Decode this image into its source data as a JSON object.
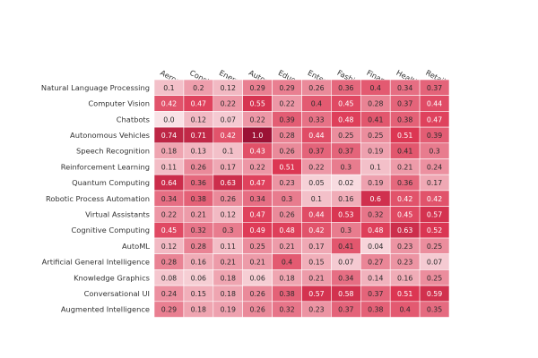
{
  "chart_data": {
    "type": "heatmap",
    "title": "",
    "xlabel": "",
    "ylabel": "",
    "columns": [
      "Aerospace",
      "Construction",
      "Energy",
      "Automotive",
      "Education",
      "Entertainment",
      "Fashion",
      "Finance",
      "Healthcare",
      "Retail"
    ],
    "rows": [
      "Natural Language Processing",
      "Computer Vision",
      "Chatbots",
      "Autonomous Vehicles",
      "Speech Recognition",
      "Reinforcement Learning",
      "Quantum Computing",
      "Robotic Process Automation",
      "Virtual Assistants",
      "Cognitive Computing",
      "AutoML",
      "Artificial General Intelligence",
      "Knowledge Graphics",
      "Conversational UI",
      "Augmented Intelligence"
    ],
    "values": [
      [
        0.1,
        0.2,
        0.12,
        0.29,
        0.29,
        0.26,
        0.36,
        0.4,
        0.34,
        0.37
      ],
      [
        0.42,
        0.47,
        0.22,
        0.55,
        0.22,
        0.4,
        0.45,
        0.28,
        0.37,
        0.44
      ],
      [
        0.0,
        0.12,
        0.07,
        0.22,
        0.39,
        0.33,
        0.48,
        0.41,
        0.38,
        0.47
      ],
      [
        0.74,
        0.71,
        0.42,
        1.0,
        0.28,
        0.44,
        0.25,
        0.25,
        0.51,
        0.39
      ],
      [
        0.18,
        0.13,
        0.1,
        0.43,
        0.26,
        0.37,
        0.37,
        0.19,
        0.41,
        0.3
      ],
      [
        0.11,
        0.26,
        0.17,
        0.22,
        0.51,
        0.22,
        0.3,
        0.1,
        0.21,
        0.24
      ],
      [
        0.64,
        0.36,
        0.63,
        0.47,
        0.23,
        0.05,
        0.02,
        0.19,
        0.36,
        0.17
      ],
      [
        0.34,
        0.38,
        0.26,
        0.34,
        0.3,
        0.1,
        0.16,
        0.6,
        0.42,
        0.42
      ],
      [
        0.22,
        0.21,
        0.12,
        0.47,
        0.26,
        0.44,
        0.53,
        0.32,
        0.45,
        0.57
      ],
      [
        0.45,
        0.32,
        0.3,
        0.49,
        0.48,
        0.42,
        0.3,
        0.48,
        0.63,
        0.52
      ],
      [
        0.12,
        0.28,
        0.11,
        0.25,
        0.21,
        0.17,
        0.41,
        0.04,
        0.23,
        0.25
      ],
      [
        0.28,
        0.16,
        0.21,
        0.21,
        0.4,
        0.15,
        0.07,
        0.27,
        0.23,
        0.07
      ],
      [
        0.08,
        0.06,
        0.18,
        0.06,
        0.18,
        0.21,
        0.34,
        0.14,
        0.16,
        0.25
      ],
      [
        0.24,
        0.15,
        0.18,
        0.26,
        0.38,
        0.57,
        0.58,
        0.37,
        0.51,
        0.59
      ],
      [
        0.29,
        0.18,
        0.19,
        0.26,
        0.32,
        0.23,
        0.37,
        0.38,
        0.4,
        0.35
      ]
    ],
    "value_labels": [
      [
        "0.1",
        "0.2",
        "0.12",
        "0.29",
        "0.29",
        "0.26",
        "0.36",
        "0.4",
        "0.34",
        "0.37"
      ],
      [
        "0.42",
        "0.47",
        "0.22",
        "0.55",
        "0.22",
        "0.4",
        "0.45",
        "0.28",
        "0.37",
        "0.44"
      ],
      [
        "0.0",
        "0.12",
        "0.07",
        "0.22",
        "0.39",
        "0.33",
        "0.48",
        "0.41",
        "0.38",
        "0.47"
      ],
      [
        "0.74",
        "0.71",
        "0.42",
        "1.0",
        "0.28",
        "0.44",
        "0.25",
        "0.25",
        "0.51",
        "0.39"
      ],
      [
        "0.18",
        "0.13",
        "0.1",
        "0.43",
        "0.26",
        "0.37",
        "0.37",
        "0.19",
        "0.41",
        "0.3"
      ],
      [
        "0.11",
        "0.26",
        "0.17",
        "0.22",
        "0.51",
        "0.22",
        "0.3",
        "0.1",
        "0.21",
        "0.24"
      ],
      [
        "0.64",
        "0.36",
        "0.63",
        "0.47",
        "0.23",
        "0.05",
        "0.02",
        "0.19",
        "0.36",
        "0.17"
      ],
      [
        "0.34",
        "0.38",
        "0.26",
        "0.34",
        "0.3",
        "0.1",
        "0.16",
        "0.6",
        "0.42",
        "0.42"
      ],
      [
        "0.22",
        "0.21",
        "0.12",
        "0.47",
        "0.26",
        "0.44",
        "0.53",
        "0.32",
        "0.45",
        "0.57"
      ],
      [
        "0.45",
        "0.32",
        "0.3",
        "0.49",
        "0.48",
        "0.42",
        "0.3",
        "0.48",
        "0.63",
        "0.52"
      ],
      [
        "0.12",
        "0.28",
        "0.11",
        "0.25",
        "0.21",
        "0.17",
        "0.41",
        "0.04",
        "0.23",
        "0.25"
      ],
      [
        "0.28",
        "0.16",
        "0.21",
        "0.21",
        "0.4",
        "0.15",
        "0.07",
        "0.27",
        "0.23",
        "0.07"
      ],
      [
        "0.08",
        "0.06",
        "0.18",
        "0.06",
        "0.18",
        "0.21",
        "0.34",
        "0.14",
        "0.16",
        "0.25"
      ],
      [
        "0.24",
        "0.15",
        "0.18",
        "0.26",
        "0.38",
        "0.57",
        "0.58",
        "0.37",
        "0.51",
        "0.59"
      ],
      [
        "0.29",
        "0.18",
        "0.19",
        "0.26",
        "0.32",
        "0.23",
        "0.37",
        "0.38",
        "0.4",
        "0.35"
      ]
    ],
    "vmin": 0,
    "vmax": 1,
    "colors": {
      "low": "#f9e2e6",
      "mid": "#dd3854",
      "high": "#9b1235",
      "text_dark": "#2b2b2b",
      "text_light": "#ffffff",
      "cell_border": "#ffffff"
    },
    "grid": false,
    "legend": "none"
  }
}
